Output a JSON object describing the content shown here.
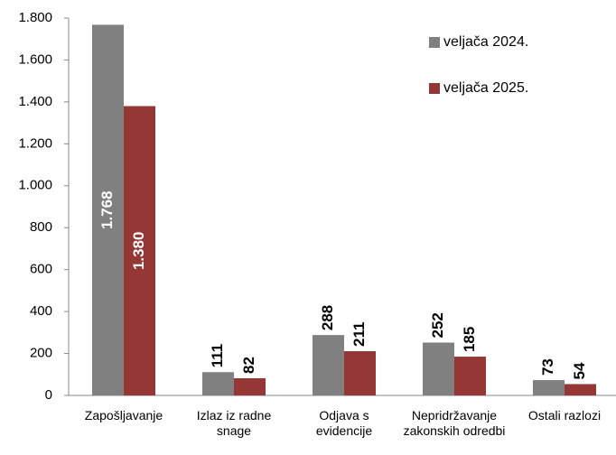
{
  "chart_data": {
    "type": "bar",
    "categories": [
      "Zapošljavanje",
      "Izlaz iz radne snage",
      "Odjava s evidencije",
      "Nepridržavanje zakonskih odredbi",
      "Ostali razlozi"
    ],
    "series": [
      {
        "name": "veljača 2024.",
        "color": "#808080",
        "values": [
          1768,
          111,
          288,
          252,
          73
        ],
        "value_labels": [
          "1.768",
          "111",
          "288",
          "252",
          "73"
        ]
      },
      {
        "name": "veljača 2025.",
        "color": "#953735",
        "values": [
          1380,
          82,
          211,
          185,
          54
        ],
        "value_labels": [
          "1.380",
          "82",
          "211",
          "185",
          "54"
        ]
      }
    ],
    "ylim": [
      0,
      1800
    ],
    "yticks": [
      0,
      200,
      400,
      600,
      800,
      {
        "value": 1000,
        "label": "1.000"
      },
      {
        "value": 1200,
        "label": "1.200"
      },
      {
        "value": 1400,
        "label": "1.400"
      },
      {
        "value": 1600,
        "label": "1.600"
      },
      {
        "value": 1800,
        "label": "1.800"
      }
    ],
    "legend": "top-right"
  }
}
